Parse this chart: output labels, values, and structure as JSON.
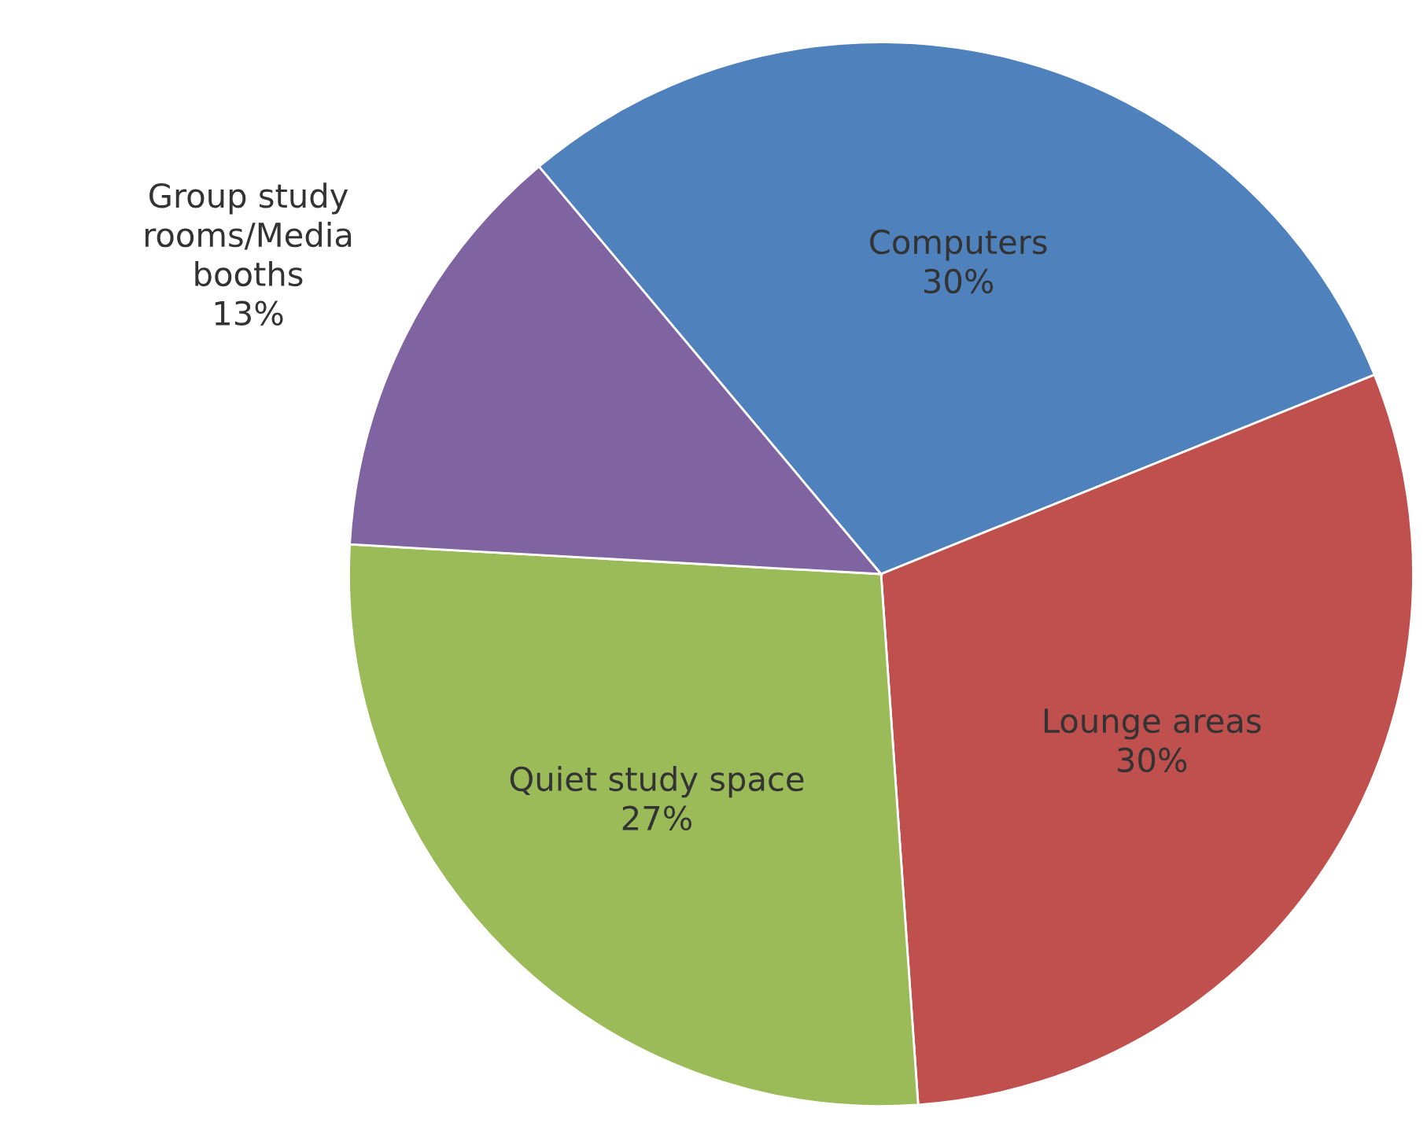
{
  "chart_data": {
    "type": "pie",
    "categories": [
      "Computers",
      "Lounge areas",
      "Quiet study space",
      "Group study\nrooms/Media\nbooths"
    ],
    "values": [
      30,
      30,
      27,
      13
    ],
    "value_labels": [
      "30%",
      "30%",
      "27%",
      "13%"
    ],
    "colors": [
      "#4f81bd",
      "#c0504d",
      "#9bbb59",
      "#8064a2"
    ]
  }
}
